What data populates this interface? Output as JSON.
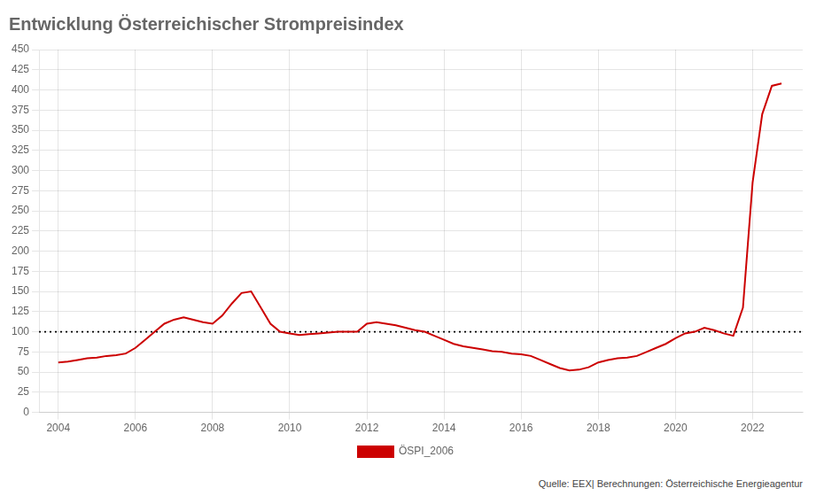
{
  "chart_data": {
    "type": "line",
    "title": "Entwicklung Österreichischer Strompreisindex",
    "source": "Quelle: EEX| Berechnungen: Österreichische Energieagentur",
    "x": [
      2004.0,
      2004.25,
      2004.5,
      2004.75,
      2005.0,
      2005.25,
      2005.5,
      2005.75,
      2006.0,
      2006.25,
      2006.5,
      2006.75,
      2007.0,
      2007.25,
      2007.5,
      2007.75,
      2008.0,
      2008.25,
      2008.5,
      2008.75,
      2009.0,
      2009.25,
      2009.5,
      2009.75,
      2010.0,
      2010.25,
      2010.5,
      2010.75,
      2011.0,
      2011.25,
      2011.5,
      2011.75,
      2012.0,
      2012.25,
      2012.5,
      2012.75,
      2013.0,
      2013.25,
      2013.5,
      2013.75,
      2014.0,
      2014.25,
      2014.5,
      2014.75,
      2015.0,
      2015.25,
      2015.5,
      2015.75,
      2016.0,
      2016.25,
      2016.5,
      2016.75,
      2017.0,
      2017.25,
      2017.5,
      2017.75,
      2018.0,
      2018.25,
      2018.5,
      2018.75,
      2019.0,
      2019.25,
      2019.5,
      2019.75,
      2020.0,
      2020.25,
      2020.5,
      2020.75,
      2021.0,
      2021.25,
      2021.5,
      2021.75,
      2022.0,
      2022.25,
      2022.5,
      2022.75
    ],
    "series": [
      {
        "name": "ÖSPI_2006",
        "color": "#cc0000",
        "values": [
          62,
          63,
          65,
          67,
          68,
          70,
          71,
          73,
          80,
          90,
          100,
          110,
          115,
          118,
          115,
          112,
          110,
          120,
          135,
          148,
          150,
          130,
          110,
          100,
          98,
          96,
          97,
          98,
          99,
          100,
          100,
          100,
          110,
          112,
          110,
          108,
          105,
          102,
          100,
          95,
          90,
          85,
          82,
          80,
          78,
          76,
          75,
          73,
          72,
          70,
          65,
          60,
          55,
          52,
          53,
          56,
          62,
          65,
          67,
          68,
          70,
          75,
          80,
          85,
          92,
          98,
          100,
          105,
          102,
          98,
          95,
          130,
          285,
          370,
          405,
          408
        ]
      }
    ],
    "hlines": [
      {
        "y": 100,
        "color": "#000000",
        "line_style": "dotted"
      }
    ],
    "xlim": [
      2003.5,
      2023.3
    ],
    "xticks": [
      2004,
      2006,
      2008,
      2010,
      2012,
      2014,
      2016,
      2018,
      2020,
      2022
    ],
    "ylim": [
      0,
      450
    ],
    "yticks": [
      0,
      25,
      50,
      75,
      100,
      125,
      150,
      175,
      200,
      225,
      250,
      275,
      300,
      325,
      350,
      375,
      400,
      425,
      450
    ],
    "grid": true,
    "legend": "bottom"
  }
}
